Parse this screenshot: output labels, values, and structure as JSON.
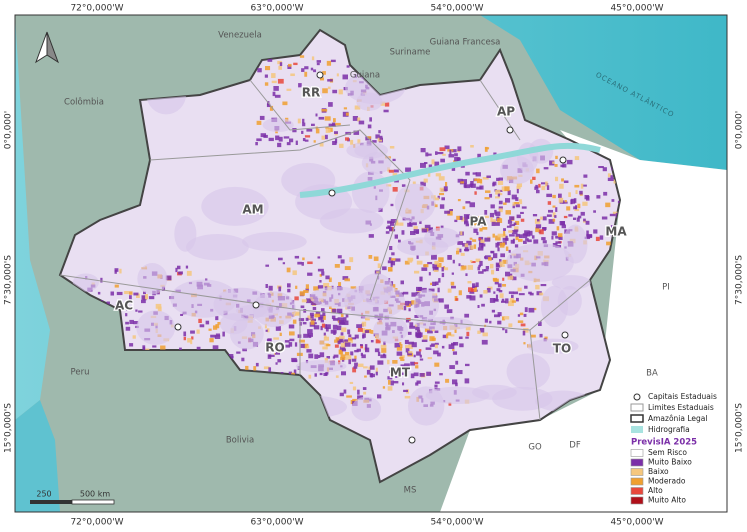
{
  "map": {
    "grid": {
      "top": [
        "72°0,000'W",
        "63°0,000'W",
        "54°0,000'W",
        "45°0,000'W"
      ],
      "bottom": [
        "72°0,000'W",
        "63°0,000'W",
        "54°0,000'W",
        "45°0,000'W"
      ],
      "left": [
        "0°0,000'",
        "7°30,000'S",
        "15°0,000'S"
      ],
      "right": [
        "0°0,000'",
        "7°30,000'S",
        "15°0,000'S"
      ]
    },
    "countries": [
      "Venezuela",
      "Suriname",
      "Guiana",
      "Guiana Francesa",
      "Colômbia",
      "Peru",
      "Bolivia",
      "OCEANO ATLÂNTICO"
    ],
    "states": [
      "RR",
      "AP",
      "AM",
      "PA",
      "MA",
      "AC",
      "RO",
      "TO",
      "MT",
      "PI",
      "BA",
      "GO",
      "DF",
      "MS"
    ],
    "legend": {
      "items": [
        "Capitais Estaduais",
        "Limites Estaduais",
        "Amazônia Legal",
        "Hidrografia"
      ],
      "title": "PrevisIA 2025",
      "classes": [
        {
          "label": "Sem Risco",
          "color": "#ffffff"
        },
        {
          "label": "Muito Baixo",
          "color": "#7b2fa8"
        },
        {
          "label": "Baixo",
          "color": "#f5c77e"
        },
        {
          "label": "Moderado",
          "color": "#f0a030"
        },
        {
          "label": "Alto",
          "color": "#e8483c"
        },
        {
          "label": "Muito Alto",
          "color": "#b0101a"
        }
      ]
    },
    "scale_bar": [
      "250",
      "500 km"
    ]
  }
}
